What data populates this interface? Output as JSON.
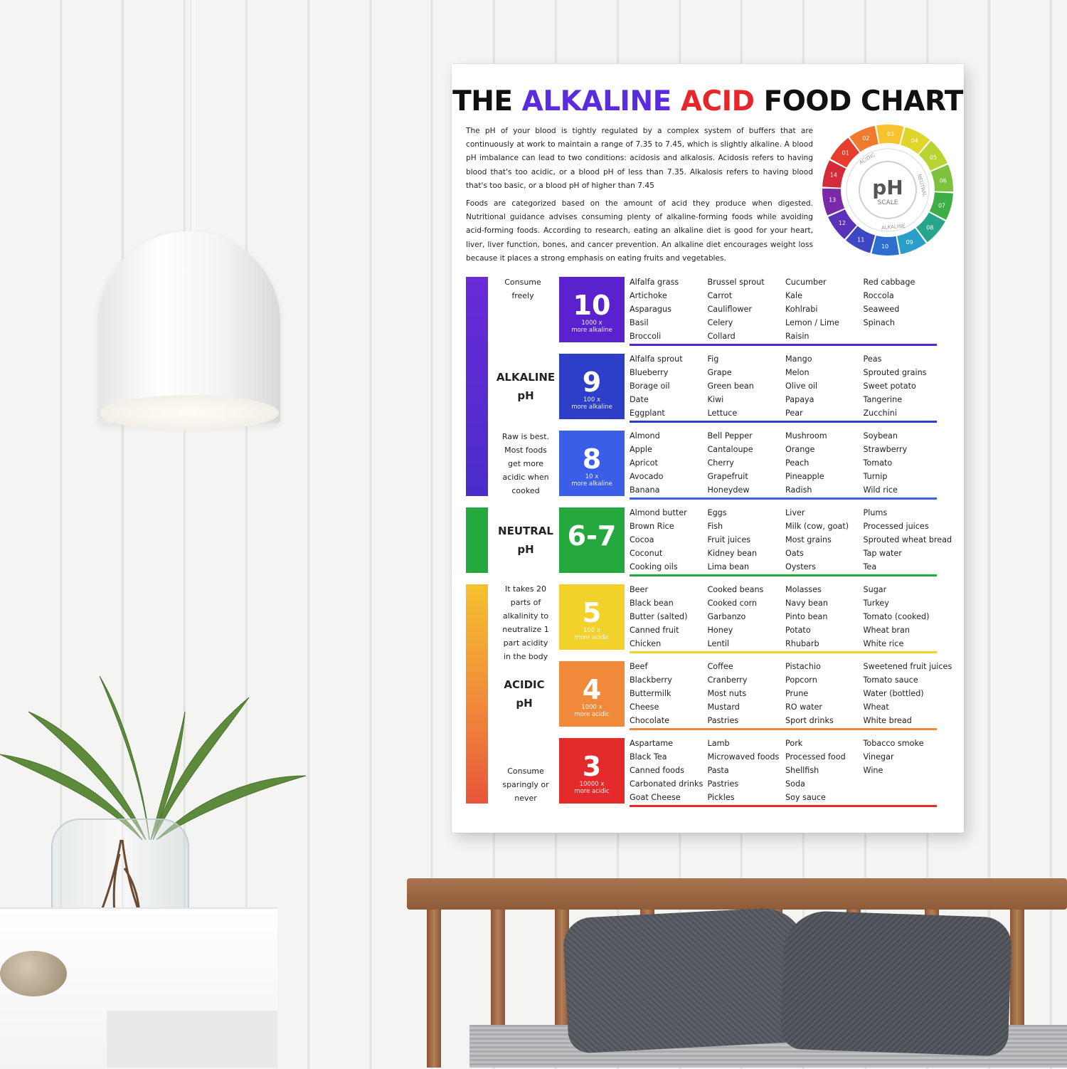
{
  "poster": {
    "title_parts": {
      "the": "THE",
      "alkaline": "ALKALINE",
      "acid": "ACID",
      "food_chart": "FOOD CHART"
    },
    "intro": [
      "The pH of your blood is tightly regulated by a complex system of buffers that are continuously at work to maintain a range of 7.35 to 7.45, which is slightly alkaline. A blood pH imbalance can lead to two conditions: acidosis and alkalosis. Acidosis refers to having blood that's too acidic, or a blood pH of less than 7.35. Alkalosis refers to having blood that's too basic, or a blood pH of higher than 7.45",
      "Foods are categorized based on the amount of acid they produce when digested. Nutritional guidance advises consuming plenty of alkaline-forming foods while avoiding acid-forming foods. According to research, eating an alkaline diet is good for your heart, liver, liver function, bones, and cancer prevention. An alkaline diet encourages weight loss because it places a strong emphasis on eating fruits and vegetables."
    ],
    "ph_scale": {
      "center_big": "pH",
      "center_small": "SCALE",
      "arc_acidic": "ACIDIC",
      "arc_neutral": "NEUTRAL",
      "arc_alkaline": "ALKALINE",
      "numbers": [
        "03",
        "04",
        "05",
        "06",
        "07",
        "08",
        "09",
        "10",
        "11",
        "12",
        "13",
        "14",
        "01",
        "02"
      ]
    },
    "side": {
      "consume_freely": [
        "Consume",
        "freely"
      ],
      "alkaline": [
        "ALKALINE",
        "pH"
      ],
      "raw_is_best": [
        "Raw is best.",
        "Most foods",
        "get more",
        "acidic when",
        "cooked"
      ],
      "neutral": [
        "NEUTRAL",
        "pH"
      ],
      "it_takes": [
        "It takes 20",
        "parts of",
        "alkalinity to",
        "neutralize 1",
        "part acidity",
        "in the body"
      ],
      "acidic": [
        "ACIDIC",
        "pH"
      ],
      "consume_sparingly": [
        "Consume",
        "sparingly or",
        "never"
      ]
    },
    "rows": [
      {
        "ph": "10",
        "sub": [
          "1000 x",
          "more alkaline"
        ],
        "color": "#5a22cf",
        "cols": [
          [
            "Alfalfa grass",
            "Artichoke",
            "Asparagus",
            "Basil",
            "Broccoli"
          ],
          [
            "Brussel sprout",
            "Carrot",
            "Cauliflower",
            "Celery",
            "Collard"
          ],
          [
            "Cucumber",
            "Kale",
            "Kohlrabi",
            "Lemon / Lime",
            "Raisin"
          ],
          [
            "Red cabbage",
            "Roccola",
            "Seaweed",
            "Spinach"
          ]
        ]
      },
      {
        "ph": "9",
        "sub": [
          "100 x",
          "more alkaline"
        ],
        "color": "#2d3fc9",
        "cols": [
          [
            "Alfalfa sprout",
            "Blueberry",
            "Borage oil",
            "Date",
            "Eggplant"
          ],
          [
            "Fig",
            "Grape",
            "Green bean",
            "Kiwi",
            "Lettuce"
          ],
          [
            "Mango",
            "Melon",
            "Olive oil",
            "Papaya",
            "Pear"
          ],
          [
            "Peas",
            "Sprouted grains",
            "Sweet potato",
            "Tangerine",
            "Zucchini"
          ]
        ]
      },
      {
        "ph": "8",
        "sub": [
          "10 x",
          "more alkaline"
        ],
        "color": "#3a5ee8",
        "cols": [
          [
            "Almond",
            "Apple",
            "Apricot",
            "Avocado",
            "Banana"
          ],
          [
            "Bell Pepper",
            "Cantaloupe",
            "Cherry",
            "Grapefruit",
            "Honeydew"
          ],
          [
            "Mushroom",
            "Orange",
            "Peach",
            "Pineapple",
            "Radish"
          ],
          [
            "Soybean",
            "Strawberry",
            "Tomato",
            "Turnip",
            "Wild rice"
          ]
        ]
      },
      {
        "ph": "6-7",
        "sub": [],
        "color": "#25a83e",
        "cols": [
          [
            "Almond butter",
            "Brown Rice",
            "Cocoa",
            "Coconut",
            "Cooking oils"
          ],
          [
            "Eggs",
            "Fish",
            "Fruit juices",
            "Kidney bean",
            "Lima bean"
          ],
          [
            "Liver",
            "Milk (cow, goat)",
            "Most grains",
            "Oats",
            "Oysters"
          ],
          [
            "Plums",
            "Processed juices",
            "Sprouted wheat bread",
            "Tap water",
            "Tea"
          ]
        ]
      },
      {
        "ph": "5",
        "sub": [
          "100 x",
          "more acidic"
        ],
        "color": "#f2d12a",
        "cols": [
          [
            "Beer",
            "Black bean",
            "Butter (salted)",
            "Canned fruit",
            "Chicken"
          ],
          [
            "Cooked beans",
            "Cooked corn",
            "Garbanzo",
            "Honey",
            "Lentil"
          ],
          [
            "Molasses",
            "Navy bean",
            "Pinto bean",
            "Potato",
            "Rhubarb"
          ],
          [
            "Sugar",
            "Turkey",
            "Tomato (cooked)",
            "Wheat bran",
            "White rice"
          ]
        ]
      },
      {
        "ph": "4",
        "sub": [
          "1000 x",
          "more acidic"
        ],
        "color": "#f08a3a",
        "cols": [
          [
            "Beef",
            "Blackberry",
            "Buttermilk",
            "Cheese",
            "Chocolate"
          ],
          [
            "Coffee",
            "Cranberry",
            "Most nuts",
            "Mustard",
            "Pastries"
          ],
          [
            "Pistachio",
            "Popcorn",
            "Prune",
            "RO water",
            "Sport drinks"
          ],
          [
            "Sweetened fruit juices",
            "Tomato sauce",
            "Water (bottled)",
            "Wheat",
            "White bread"
          ]
        ]
      },
      {
        "ph": "3",
        "sub": [
          "10000 x",
          "more acidic"
        ],
        "color": "#e42a2a",
        "cols": [
          [
            "Aspartame",
            "Black Tea",
            "Canned foods",
            "Carbonated drinks",
            "Goat Cheese"
          ],
          [
            "Lamb",
            "Microwaved foods",
            "Pasta",
            "Pastries",
            "Pickles"
          ],
          [
            "Pork",
            "Processed food",
            "Shellfish",
            "Soda",
            "Soy sauce"
          ],
          [
            "Tobacco smoke",
            "Vinegar",
            "Wine"
          ]
        ]
      }
    ]
  }
}
